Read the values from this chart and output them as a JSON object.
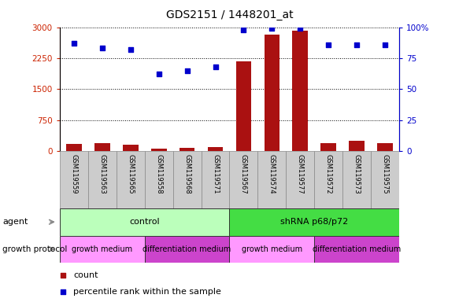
{
  "title": "GDS2151 / 1448201_at",
  "samples": [
    "GSM119559",
    "GSM119563",
    "GSM119565",
    "GSM119558",
    "GSM119568",
    "GSM119571",
    "GSM119567",
    "GSM119574",
    "GSM119577",
    "GSM119572",
    "GSM119573",
    "GSM119575"
  ],
  "count_values": [
    180,
    200,
    160,
    50,
    70,
    90,
    2170,
    2820,
    2920,
    200,
    240,
    195
  ],
  "percentile_values": [
    87,
    83,
    82,
    62,
    65,
    68,
    98,
    99,
    99,
    86,
    86,
    86
  ],
  "ylim_left": [
    0,
    3000
  ],
  "ylim_right": [
    0,
    100
  ],
  "yticks_left": [
    0,
    750,
    1500,
    2250,
    3000
  ],
  "ytick_labels_left": [
    "0",
    "750",
    "1500",
    "2250",
    "3000"
  ],
  "yticks_right": [
    0,
    25,
    50,
    75,
    100
  ],
  "ytick_labels_right": [
    "0",
    "25",
    "50",
    "75",
    "100%"
  ],
  "bar_color": "#aa1111",
  "dot_color": "#0000cc",
  "agent_groups": [
    {
      "label": "control",
      "start": 0,
      "end": 6,
      "color": "#bbffbb"
    },
    {
      "label": "shRNA p68/p72",
      "start": 6,
      "end": 12,
      "color": "#44dd44"
    }
  ],
  "growth_groups": [
    {
      "label": "growth medium",
      "start": 0,
      "end": 3,
      "color": "#ff99ff"
    },
    {
      "label": "differentiation medium",
      "start": 3,
      "end": 6,
      "color": "#cc44cc"
    },
    {
      "label": "growth medium",
      "start": 6,
      "end": 9,
      "color": "#ff99ff"
    },
    {
      "label": "differentiation medium",
      "start": 9,
      "end": 12,
      "color": "#cc44cc"
    }
  ],
  "legend_count_color": "#aa1111",
  "legend_dot_color": "#0000cc",
  "bg_color": "#ffffff",
  "tick_label_color_left": "#cc2200",
  "tick_label_color_right": "#0000cc",
  "grid_color": "#000000",
  "agent_label": "agent",
  "growth_label": "growth protocol",
  "sample_bg": "#cccccc",
  "sample_edge": "#888888"
}
